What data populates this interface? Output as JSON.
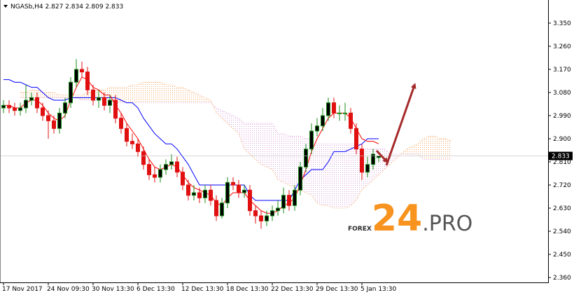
{
  "chart_data": {
    "type": "candlestick",
    "symbol": "NGASb,H4",
    "categories": [
      "17 Nov 2017",
      null,
      null,
      null,
      null,
      null,
      null,
      null,
      "24 Nov 09:30",
      null,
      null,
      null,
      null,
      null,
      null,
      null,
      "30 Nov 13:30",
      null,
      null,
      null,
      null,
      null,
      null,
      null,
      "6 Dec 13:30",
      null,
      null,
      null,
      null,
      null,
      null,
      null,
      "12 Dec 13:30",
      null,
      null,
      null,
      null,
      null,
      null,
      null,
      "18 Dec 13:30",
      null,
      null,
      null,
      null,
      null,
      null,
      null,
      "22 Dec 13:30",
      null,
      null,
      null,
      null,
      null,
      null,
      null,
      "29 Dec 13:30",
      null,
      null,
      null,
      null,
      null,
      null,
      null,
      "5 Jan 13:30",
      null,
      null,
      null,
      null,
      null,
      null,
      null,
      null,
      null,
      null,
      null,
      null,
      null,
      null,
      null,
      null
    ],
    "open": [
      3.02,
      3.03,
      3.02,
      3.01,
      3.02,
      3.05,
      3.06,
      3.02,
      2.99,
      2.97,
      2.94,
      3.0,
      3.04,
      3.12,
      3.17,
      3.16,
      3.09,
      3.05,
      3.06,
      3.03,
      3.05,
      2.98,
      2.94,
      2.89,
      2.88,
      2.85,
      2.8,
      2.76,
      2.75,
      2.78,
      2.8,
      2.81,
      2.77,
      2.72,
      2.68,
      2.69,
      2.67,
      2.7,
      2.66,
      2.6,
      2.65,
      2.73,
      2.72,
      2.69,
      2.7,
      2.62,
      2.6,
      2.58,
      2.6,
      2.62,
      2.63,
      2.68,
      2.64,
      2.7,
      2.79,
      2.86,
      2.93,
      2.95,
      2.99,
      3.04,
      3.0,
      3.0,
      3.0,
      2.94,
      2.86,
      2.77,
      2.8,
      2.827,
      null,
      null,
      null,
      null,
      null,
      null,
      null,
      null,
      null,
      null,
      null,
      null,
      null
    ],
    "high": [
      3.05,
      3.05,
      3.04,
      3.04,
      3.11,
      3.08,
      3.08,
      3.04,
      3.01,
      2.99,
      3.02,
      3.06,
      3.14,
      3.21,
      3.2,
      3.18,
      3.11,
      3.09,
      3.08,
      3.07,
      3.07,
      3.0,
      2.96,
      2.92,
      2.9,
      2.87,
      2.82,
      2.79,
      2.8,
      2.82,
      2.84,
      2.83,
      2.79,
      2.74,
      2.72,
      2.71,
      2.72,
      2.72,
      2.68,
      2.67,
      2.75,
      2.75,
      2.74,
      2.72,
      2.72,
      2.64,
      2.62,
      2.62,
      2.64,
      2.66,
      2.71,
      2.7,
      2.72,
      2.81,
      2.88,
      2.96,
      2.98,
      3.02,
      3.06,
      3.06,
      3.03,
      3.04,
      3.02,
      2.96,
      2.88,
      2.83,
      2.86,
      2.834,
      null,
      null,
      null,
      null,
      null,
      null,
      null,
      null,
      null,
      null,
      null,
      null,
      null
    ],
    "low": [
      3.0,
      3.0,
      2.99,
      2.99,
      3.0,
      3.03,
      3.0,
      2.97,
      2.9,
      2.92,
      2.92,
      2.98,
      3.02,
      3.1,
      3.14,
      3.07,
      3.03,
      3.02,
      3.01,
      3.0,
      2.96,
      2.92,
      2.87,
      2.86,
      2.83,
      2.78,
      2.74,
      2.73,
      2.73,
      2.76,
      2.78,
      2.75,
      2.7,
      2.66,
      2.66,
      2.65,
      2.65,
      2.64,
      2.58,
      2.59,
      2.63,
      2.7,
      2.67,
      2.67,
      2.6,
      2.57,
      2.55,
      2.56,
      2.58,
      2.6,
      2.61,
      2.62,
      2.62,
      2.68,
      2.77,
      2.84,
      2.91,
      2.93,
      2.97,
      2.98,
      2.97,
      2.97,
      2.92,
      2.84,
      2.74,
      2.75,
      2.78,
      2.809,
      null,
      null,
      null,
      null,
      null,
      null,
      null,
      null,
      null,
      null,
      null,
      null,
      null
    ],
    "close": [
      3.03,
      3.02,
      3.01,
      3.02,
      3.05,
      3.06,
      3.02,
      2.99,
      2.97,
      2.94,
      3.0,
      3.04,
      3.12,
      3.17,
      3.16,
      3.09,
      3.05,
      3.06,
      3.03,
      3.05,
      2.98,
      2.94,
      2.89,
      2.88,
      2.85,
      2.8,
      2.76,
      2.75,
      2.78,
      2.8,
      2.81,
      2.77,
      2.72,
      2.68,
      2.69,
      2.67,
      2.7,
      2.66,
      2.6,
      2.65,
      2.73,
      2.72,
      2.69,
      2.7,
      2.62,
      2.6,
      2.58,
      2.6,
      2.62,
      2.63,
      2.68,
      2.64,
      2.7,
      2.79,
      2.86,
      2.93,
      2.95,
      2.99,
      3.04,
      3.0,
      3.0,
      3.0,
      2.94,
      2.86,
      2.77,
      2.8,
      2.84,
      2.833,
      null,
      null,
      null,
      null,
      null,
      null,
      null,
      null,
      null,
      null,
      null,
      null,
      null
    ],
    "up_color": "#1a8c1a",
    "down_color": "#e01010",
    "series": [
      {
        "color": "#ff0000",
        "values": [
          3.03,
          3.03,
          3.02,
          3.02,
          3.04,
          3.05,
          3.05,
          3.03,
          3.0,
          2.98,
          2.97,
          2.99,
          3.05,
          3.1,
          3.14,
          3.13,
          3.1,
          3.09,
          3.07,
          3.07,
          3.03,
          3.0,
          2.96,
          2.93,
          2.9,
          2.86,
          2.82,
          2.79,
          2.78,
          2.79,
          2.8,
          2.79,
          2.76,
          2.73,
          2.71,
          2.7,
          2.69,
          2.68,
          2.65,
          2.64,
          2.67,
          2.69,
          2.69,
          2.69,
          2.66,
          2.64,
          2.62,
          2.61,
          2.61,
          2.62,
          2.64,
          2.65,
          2.67,
          2.72,
          2.78,
          2.85,
          2.9,
          2.94,
          2.98,
          3.0,
          3.0,
          3.0,
          2.98,
          2.94,
          2.9,
          2.89,
          2.89,
          2.88,
          null,
          null,
          null,
          null,
          null,
          null,
          null,
          null,
          null,
          null,
          null,
          null,
          null
        ]
      },
      {
        "color": "#0000ff",
        "values": [
          3.13,
          3.13,
          3.12,
          3.12,
          3.11,
          3.1,
          3.1,
          3.08,
          3.06,
          3.05,
          3.05,
          3.05,
          3.06,
          3.06,
          3.06,
          3.06,
          3.06,
          3.06,
          3.06,
          3.06,
          3.06,
          3.05,
          3.04,
          3.04,
          3.02,
          2.98,
          2.95,
          2.92,
          2.9,
          2.88,
          2.88,
          2.86,
          2.83,
          2.8,
          2.76,
          2.72,
          2.72,
          2.72,
          2.72,
          2.72,
          2.72,
          2.72,
          2.72,
          2.72,
          2.68,
          2.66,
          2.66,
          2.66,
          2.66,
          2.66,
          2.66,
          2.66,
          2.7,
          2.74,
          2.76,
          2.78,
          2.78,
          2.78,
          2.81,
          2.85,
          2.85,
          2.85,
          2.86,
          2.87,
          2.88,
          2.9,
          2.9,
          2.9,
          null,
          null,
          null,
          null,
          null,
          null,
          null,
          null,
          null,
          null,
          null,
          null,
          null
        ]
      },
      {
        "color": "#f4a460",
        "values": [
          null,
          null,
          null,
          3.08,
          3.08,
          3.09,
          3.09,
          3.08,
          3.08,
          3.08,
          3.07,
          3.07,
          3.07,
          3.07,
          3.07,
          3.08,
          3.08,
          3.09,
          3.09,
          3.1,
          3.1,
          3.1,
          3.1,
          3.11,
          3.11,
          3.12,
          3.12,
          3.12,
          3.12,
          3.11,
          3.11,
          3.1,
          3.1,
          3.09,
          3.08,
          3.07,
          3.06,
          3.05,
          3.0,
          2.98,
          2.96,
          2.94,
          2.92,
          2.86,
          2.84,
          2.82,
          2.8,
          2.79,
          2.78,
          2.74,
          2.73,
          2.72,
          2.71,
          2.7,
          2.69,
          2.68,
          2.65,
          2.64,
          2.64,
          2.63,
          2.63,
          2.63,
          2.64,
          2.66,
          2.7,
          2.72,
          2.74,
          2.76,
          2.78,
          2.8,
          2.82,
          2.84,
          2.86,
          2.87,
          2.88,
          2.9,
          2.91,
          2.91,
          2.9,
          2.9,
          2.89
        ]
      },
      {
        "color": "#d8a0d8",
        "values": [
          null,
          null,
          null,
          3.06,
          3.06,
          3.06,
          3.06,
          3.06,
          3.06,
          3.06,
          3.06,
          3.06,
          3.06,
          3.06,
          3.05,
          3.05,
          3.05,
          3.05,
          3.05,
          3.05,
          3.04,
          3.04,
          3.04,
          3.04,
          3.04,
          3.04,
          3.04,
          3.04,
          3.04,
          3.04,
          3.04,
          3.04,
          3.04,
          3.04,
          3.04,
          3.04,
          3.04,
          3.04,
          3.02,
          3.01,
          3.0,
          2.99,
          2.98,
          2.96,
          2.96,
          2.96,
          2.96,
          2.96,
          2.96,
          2.92,
          2.92,
          2.91,
          2.91,
          2.91,
          2.9,
          2.9,
          2.88,
          2.88,
          2.88,
          2.88,
          2.88,
          2.88,
          2.88,
          2.88,
          2.86,
          2.86,
          2.86,
          2.86,
          2.86,
          2.84,
          2.84,
          2.84,
          2.84,
          2.84,
          2.84,
          2.82,
          2.82,
          2.82,
          2.82,
          2.82,
          2.82
        ]
      }
    ],
    "ylim": [
      2.341,
      3.44
    ],
    "yticks": [
      {
        "value": 3.35,
        "label": "3.350"
      },
      {
        "value": 3.26,
        "label": "3.260"
      },
      {
        "value": 3.17,
        "label": "3.170"
      },
      {
        "value": 3.08,
        "label": "3.080"
      },
      {
        "value": 2.99,
        "label": "2.990"
      },
      {
        "value": 2.9,
        "label": "2.900"
      },
      {
        "value": 2.81,
        "label": "2.810"
      },
      {
        "value": 2.72,
        "label": "2.720"
      },
      {
        "value": 2.63,
        "label": "2.630"
      },
      {
        "value": 2.54,
        "label": "2.540"
      },
      {
        "value": 2.45,
        "label": "2.450"
      },
      {
        "value": 2.36,
        "label": "2.360"
      }
    ]
  },
  "watermark": {
    "brand": "FOREX",
    "number": "24",
    "suffix": ".PRO"
  }
}
